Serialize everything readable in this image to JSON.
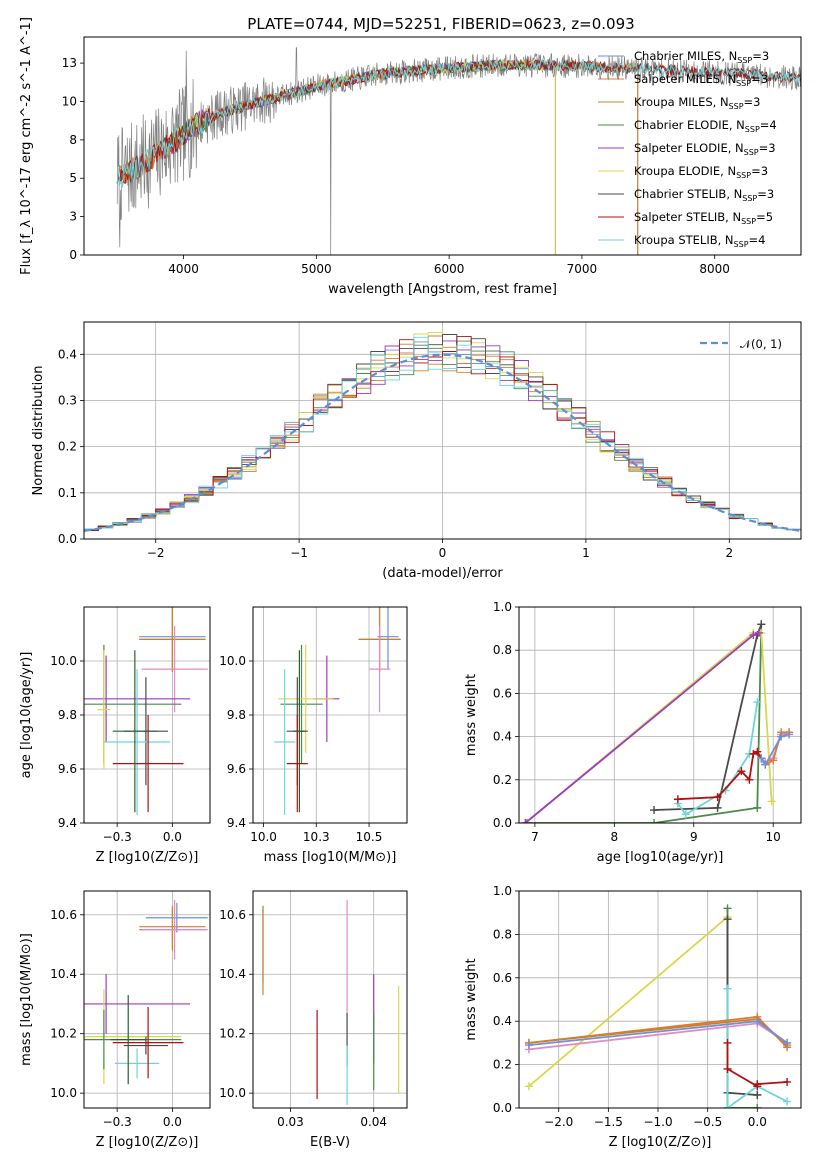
{
  "figure": {
    "title": "PLATE=0744, MJD=52251, FIBERID=0623, z=0.093"
  },
  "chart_data": [
    {
      "type": "line",
      "name": "spectrum",
      "xlabel": "wavelength [Angstrom, rest frame]",
      "ylabel": "Flux [f_λ 10^-17 erg cm^-2 s^-1 A^-1]",
      "xlim": [
        3250,
        8650
      ],
      "ylim": [
        0,
        14.2
      ],
      "xticks": [
        4000,
        5000,
        6000,
        7000,
        8000
      ],
      "yticks": [
        0.0,
        2.5,
        5.0,
        7.5,
        10.0,
        12.5
      ],
      "legend_position": "top-right",
      "series": [
        {
          "name": "Chabrier MILES, N_SSP=3",
          "color": "#6f8fd9",
          "x_range": [
            3500,
            7420
          ]
        },
        {
          "name": "Salpeter MILES, N_SSP=3",
          "color": "#e0783a",
          "x_range": [
            3500,
            7420
          ]
        },
        {
          "name": "Kroupa MILES, N_SSP=3",
          "color": "#c9822a",
          "x_range": [
            3500,
            7420
          ]
        },
        {
          "name": "Chabrier ELODIE, N_SSP=4",
          "color": "#4a8a4a",
          "x_range": [
            3900,
            6800
          ]
        },
        {
          "name": "Salpeter ELODIE, N_SSP=3",
          "color": "#9b3bbf",
          "x_range": [
            3900,
            6800
          ]
        },
        {
          "name": "Kroupa ELODIE, N_SSP=3",
          "color": "#d8d84a",
          "x_range": [
            3900,
            6800
          ]
        },
        {
          "name": "Chabrier STELIB, N_SSP=3",
          "color": "#4a4a4a",
          "x_range": [
            3500,
            8650
          ]
        },
        {
          "name": "Salpeter STELIB, N_SSP=5",
          "color": "#b01010",
          "x_range": [
            3500,
            8650
          ]
        },
        {
          "name": "Kroupa STELIB, N_SSP=4",
          "color": "#6dd6d6",
          "x_range": [
            3500,
            8650
          ]
        }
      ],
      "data_color": "#808080",
      "continuum": [
        [
          3500,
          5.0
        ],
        [
          3700,
          6.0
        ],
        [
          3900,
          7.2
        ],
        [
          4100,
          8.5
        ],
        [
          4300,
          9.3
        ],
        [
          4500,
          9.8
        ],
        [
          4800,
          10.5
        ],
        [
          5000,
          11.0
        ],
        [
          5500,
          11.8
        ],
        [
          6000,
          12.2
        ],
        [
          6500,
          12.4
        ],
        [
          7000,
          12.3
        ],
        [
          7500,
          12.1
        ],
        [
          8000,
          11.9
        ],
        [
          8500,
          11.6
        ],
        [
          8650,
          11.5
        ]
      ]
    },
    {
      "type": "line",
      "name": "residual-histogram",
      "xlabel": "(data-model)/error",
      "ylabel": "Normed distribution",
      "xlim": [
        -2.5,
        2.5
      ],
      "ylim": [
        0,
        0.47
      ],
      "xticks": [
        -2,
        -1,
        0,
        1,
        2
      ],
      "yticks": [
        0.0,
        0.1,
        0.2,
        0.3,
        0.4
      ],
      "grid": true,
      "legend_position": "top-right",
      "reference_curve": {
        "name": "𝒩(0, 1)",
        "color": "#5b8fd6",
        "style": "dashed"
      },
      "bin_width": 0.1,
      "series_colors": [
        "#6f8fd9",
        "#e0783a",
        "#c9822a",
        "#4a8a4a",
        "#9b3bbf",
        "#d8d84a",
        "#4a4a4a",
        "#b01010",
        "#6dd6d6"
      ]
    },
    {
      "type": "scatter",
      "name": "age-vs-Z",
      "xlabel": "Z [log10(Z/Z⊙)]",
      "ylabel": "age  [log10(age/yr)]",
      "xlim": [
        -0.4,
        0.17
      ],
      "ylim": [
        9.4,
        10.2
      ],
      "xticks": [
        -0.25,
        0.0
      ],
      "yticks": [
        9.4,
        9.6,
        9.8,
        10.0
      ],
      "grid": true,
      "points": [
        {
          "x": 0.0,
          "y": 10.09,
          "xerr": 0.15,
          "yerr": 0.12,
          "color": "#6f8fd9"
        },
        {
          "x": 0.0,
          "y": 10.08,
          "xerr": 0.15,
          "yerr": 0.12,
          "color": "#e0783a"
        },
        {
          "x": 0.0,
          "y": 10.08,
          "xerr": 0.15,
          "yerr": 0.12,
          "color": "#c9822a"
        },
        {
          "x": 0.01,
          "y": 9.97,
          "xerr": 0.15,
          "yerr": 0.16,
          "color": "#e08cc4"
        },
        {
          "x": -0.3,
          "y": 9.86,
          "xerr": 0.38,
          "yerr": 0.16,
          "color": "#9b3bbf"
        },
        {
          "x": -0.31,
          "y": 9.84,
          "xerr": 0.35,
          "yerr": 0.22,
          "color": "#4a8a4a"
        },
        {
          "x": -0.31,
          "y": 9.82,
          "xerr": 0.03,
          "yerr": 0.22,
          "color": "#d8d84a"
        },
        {
          "x": -0.12,
          "y": 9.74,
          "xerr": 0.1,
          "yerr": 0.2,
          "color": "#4a4a4a"
        },
        {
          "x": -0.16,
          "y": 9.7,
          "xerr": 0.15,
          "yerr": 0.27,
          "color": "#6dd6d6"
        },
        {
          "x": -0.11,
          "y": 9.62,
          "xerr": 0.16,
          "yerr": 0.18,
          "color": "#b01010"
        },
        {
          "x": -0.17,
          "y": 9.74,
          "xerr": 0.1,
          "yerr": 0.3,
          "color": "#2f5f2f"
        }
      ]
    },
    {
      "type": "scatter",
      "name": "age-vs-mass",
      "xlabel": "mass [log10(M/M⊙)]",
      "ylabel": "",
      "xlim": [
        9.95,
        10.68
      ],
      "ylim": [
        9.4,
        10.2
      ],
      "xticks": [
        10.0,
        10.25,
        10.5
      ],
      "yticks": [
        9.4,
        9.6,
        9.8,
        10.0
      ],
      "grid": true,
      "points": [
        {
          "x": 10.59,
          "y": 10.09,
          "xerr": 0.05,
          "yerr": 0.12,
          "color": "#6f8fd9"
        },
        {
          "x": 10.55,
          "y": 10.08,
          "xerr": 0.1,
          "yerr": 0.12,
          "color": "#e0783a"
        },
        {
          "x": 10.55,
          "y": 10.08,
          "xerr": 0.1,
          "yerr": 0.12,
          "color": "#c9822a"
        },
        {
          "x": 10.55,
          "y": 9.97,
          "xerr": 0.05,
          "yerr": 0.16,
          "color": "#e08cc4"
        },
        {
          "x": 10.3,
          "y": 9.86,
          "xerr": 0.06,
          "yerr": 0.16,
          "color": "#9b3bbf"
        },
        {
          "x": 10.18,
          "y": 9.84,
          "xerr": 0.1,
          "yerr": 0.22,
          "color": "#4a8a4a"
        },
        {
          "x": 10.2,
          "y": 9.86,
          "xerr": 0.13,
          "yerr": 0.2,
          "color": "#d8d84a"
        },
        {
          "x": 10.16,
          "y": 9.74,
          "xerr": 0.05,
          "yerr": 0.2,
          "color": "#4a4a4a"
        },
        {
          "x": 10.1,
          "y": 9.7,
          "xerr": 0.05,
          "yerr": 0.27,
          "color": "#6dd6d6"
        },
        {
          "x": 10.16,
          "y": 9.62,
          "xerr": 0.05,
          "yerr": 0.18,
          "color": "#b01010"
        },
        {
          "x": 10.17,
          "y": 9.74,
          "xerr": 0.03,
          "yerr": 0.3,
          "color": "#2f5f2f"
        }
      ]
    },
    {
      "type": "line",
      "name": "mass-weight-vs-age",
      "xlabel": "age  [log10(age/yr)]",
      "ylabel": "mass weight",
      "xlim": [
        6.8,
        10.35
      ],
      "ylim": [
        0,
        1.0
      ],
      "xticks": [
        7,
        8,
        9,
        10
      ],
      "yticks": [
        0.0,
        0.2,
        0.4,
        0.6,
        0.8,
        1.0
      ],
      "grid": true,
      "series": [
        {
          "color": "#4a8a4a",
          "x": [
            6.9,
            8.5,
            9.8,
            9.85
          ],
          "y": [
            0.0,
            0.0,
            0.07,
            0.92
          ]
        },
        {
          "color": "#4a4a4a",
          "x": [
            8.5,
            9.3,
            9.8,
            9.85
          ],
          "y": [
            0.06,
            0.07,
            0.87,
            0.92
          ]
        },
        {
          "color": "#d8d84a",
          "x": [
            6.88,
            9.75,
            9.85,
            9.98
          ],
          "y": [
            0.0,
            0.88,
            0.88,
            0.1
          ]
        },
        {
          "color": "#9b3bbf",
          "x": [
            6.88,
            9.75,
            9.82
          ],
          "y": [
            0.0,
            0.87,
            0.88
          ]
        },
        {
          "color": "#6dd6d6",
          "x": [
            8.8,
            8.9,
            9.4,
            9.7,
            9.8
          ],
          "y": [
            0.09,
            0.04,
            0.15,
            0.32,
            0.56
          ]
        },
        {
          "color": "#b01010",
          "x": [
            8.8,
            9.3,
            9.6,
            9.7,
            9.75,
            9.8,
            9.85
          ],
          "y": [
            0.11,
            0.12,
            0.24,
            0.2,
            0.32,
            0.33,
            0.3
          ]
        },
        {
          "color": "#e08cc4",
          "x": [
            9.85,
            9.9,
            10.0,
            10.1,
            10.2
          ],
          "y": [
            0.3,
            0.28,
            0.3,
            0.41,
            0.42
          ]
        },
        {
          "color": "#e0783a",
          "x": [
            9.85,
            9.9,
            10.0,
            10.1,
            10.2
          ],
          "y": [
            0.3,
            0.27,
            0.29,
            0.42,
            0.42
          ]
        },
        {
          "color": "#6f8fd9",
          "x": [
            9.85,
            9.9,
            10.1,
            10.2
          ],
          "y": [
            0.3,
            0.27,
            0.4,
            0.41
          ]
        }
      ]
    },
    {
      "type": "scatter",
      "name": "mass-vs-Z",
      "xlabel": "Z [log10(Z/Z⊙)]",
      "ylabel": "mass [log10(M/M⊙)]",
      "xlim": [
        -0.4,
        0.17
      ],
      "ylim": [
        9.95,
        10.68
      ],
      "xticks": [
        -0.25,
        0.0
      ],
      "yticks": [
        10.0,
        10.2,
        10.4,
        10.6
      ],
      "grid": true,
      "points": [
        {
          "x": 0.02,
          "y": 10.59,
          "xerr": 0.14,
          "yerr": 0.05,
          "color": "#6f8fd9"
        },
        {
          "x": 0.0,
          "y": 10.56,
          "xerr": 0.15,
          "yerr": 0.07,
          "color": "#e0783a"
        },
        {
          "x": 0.0,
          "y": 10.55,
          "xerr": 0.15,
          "yerr": 0.07,
          "color": "#c9822a"
        },
        {
          "x": 0.01,
          "y": 10.55,
          "xerr": 0.15,
          "yerr": 0.1,
          "color": "#e08cc4"
        },
        {
          "x": -0.3,
          "y": 10.3,
          "xerr": 0.38,
          "yerr": 0.1,
          "color": "#9b3bbf"
        },
        {
          "x": -0.31,
          "y": 10.19,
          "xerr": 0.35,
          "yerr": 0.16,
          "color": "#d8d84a"
        },
        {
          "x": -0.31,
          "y": 10.18,
          "xerr": 0.35,
          "yerr": 0.1,
          "color": "#4a8a4a"
        },
        {
          "x": -0.12,
          "y": 10.16,
          "xerr": 0.1,
          "yerr": 0.03,
          "color": "#4a4a4a"
        },
        {
          "x": -0.16,
          "y": 10.1,
          "xerr": 0.1,
          "yerr": 0.05,
          "color": "#6dd6d6"
        },
        {
          "x": -0.11,
          "y": 10.17,
          "xerr": 0.16,
          "yerr": 0.12,
          "color": "#b01010"
        },
        {
          "x": -0.2,
          "y": 10.18,
          "xerr": 0.08,
          "yerr": 0.15,
          "color": "#2f5f2f"
        }
      ]
    },
    {
      "type": "scatter",
      "name": "mass-vs-ebv",
      "xlabel": "E(B-V)",
      "ylabel": "",
      "xlim": [
        0.0255,
        0.044
      ],
      "ylim": [
        9.95,
        10.68
      ],
      "xticks": [
        0.03,
        0.04
      ],
      "yticks": [
        10.0,
        10.2,
        10.4,
        10.6
      ],
      "grid": true,
      "points": [
        {
          "x": 0.0267,
          "y": 10.5,
          "yerr": 0.13,
          "color": "#6f8fd9"
        },
        {
          "x": 0.0267,
          "y": 10.48,
          "yerr": 0.15,
          "color": "#c9822a"
        },
        {
          "x": 0.0368,
          "y": 10.46,
          "yerr": 0.19,
          "color": "#e08cc4"
        },
        {
          "x": 0.04,
          "y": 10.25,
          "yerr": 0.15,
          "color": "#9b3bbf"
        },
        {
          "x": 0.043,
          "y": 10.18,
          "yerr": 0.18,
          "color": "#d8d84a"
        },
        {
          "x": 0.0368,
          "y": 10.18,
          "yerr": 0.09,
          "color": "#4a4a4a"
        },
        {
          "x": 0.0368,
          "y": 10.06,
          "yerr": 0.1,
          "color": "#6dd6d6"
        },
        {
          "x": 0.0332,
          "y": 10.13,
          "yerr": 0.15,
          "color": "#b01010"
        },
        {
          "x": 0.04,
          "y": 10.14,
          "yerr": 0.13,
          "color": "#4a8a4a"
        }
      ]
    },
    {
      "type": "line",
      "name": "mass-weight-vs-Z",
      "xlabel": "Z [log10(Z/Z⊙)]",
      "ylabel": "mass weight",
      "xlim": [
        -2.4,
        0.44
      ],
      "ylim": [
        0,
        1.0
      ],
      "xticks": [
        -2.0,
        -1.5,
        -1.0,
        -0.5,
        0.0
      ],
      "yticks": [
        0.0,
        0.2,
        0.4,
        0.6,
        0.8,
        1.0
      ],
      "grid": true,
      "series": [
        {
          "color": "#d8d84a",
          "x": [
            -2.3,
            -0.3,
            -0.3,
            0.0
          ],
          "y": [
            0.1,
            0.88,
            0.0,
            0.0
          ]
        },
        {
          "color": "#4a8a4a",
          "x": [
            -0.3,
            -0.3,
            0.0
          ],
          "y": [
            0.92,
            0.0,
            0.0
          ]
        },
        {
          "color": "#4a4a4a",
          "x": [
            -0.3,
            -0.3,
            0.0,
            0.0
          ],
          "y": [
            0.87,
            0.07,
            0.06,
            0.06
          ]
        },
        {
          "color": "#6dd6d6",
          "x": [
            -0.3,
            -0.3,
            0.0,
            0.3
          ],
          "y": [
            0.55,
            0.0,
            0.1,
            0.03
          ]
        },
        {
          "color": "#b01010",
          "x": [
            -0.3,
            -0.3,
            0.0,
            0.0,
            0.3
          ],
          "y": [
            0.3,
            0.18,
            0.1,
            0.11,
            0.12
          ]
        },
        {
          "color": "#e08cc4",
          "x": [
            -2.3,
            0.0,
            0.3
          ],
          "y": [
            0.27,
            0.39,
            0.3
          ]
        },
        {
          "color": "#e0783a",
          "x": [
            -2.3,
            0.0,
            0.3
          ],
          "y": [
            0.3,
            0.42,
            0.28
          ]
        },
        {
          "color": "#c9822a",
          "x": [
            -2.3,
            0.0,
            0.3
          ],
          "y": [
            0.3,
            0.41,
            0.29
          ]
        },
        {
          "color": "#6f8fd9",
          "x": [
            -2.3,
            0.0,
            0.3
          ],
          "y": [
            0.29,
            0.4,
            0.3
          ]
        }
      ]
    }
  ]
}
